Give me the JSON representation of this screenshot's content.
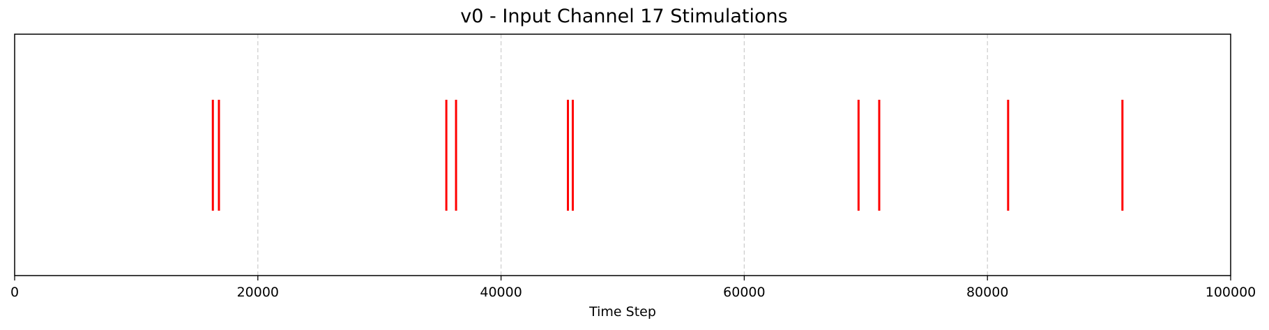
{
  "chart_data": {
    "type": "eventplot",
    "title": "v0 - Input Channel 17 Stimulations",
    "xlabel": "Time Step",
    "ylabel": "",
    "xlim": [
      0,
      100000
    ],
    "xticks": [
      0,
      20000,
      40000,
      60000,
      80000,
      100000
    ],
    "xtick_labels": [
      "0",
      "20000",
      "40000",
      "60000",
      "80000",
      "100000"
    ],
    "grid": "x-axis dashed",
    "legend": "none",
    "series": [
      {
        "color": "#ff0000",
        "x": [
          16300,
          16800,
          35500,
          36300,
          45500,
          45900,
          69400,
          71100,
          81700,
          91100
        ]
      }
    ]
  }
}
